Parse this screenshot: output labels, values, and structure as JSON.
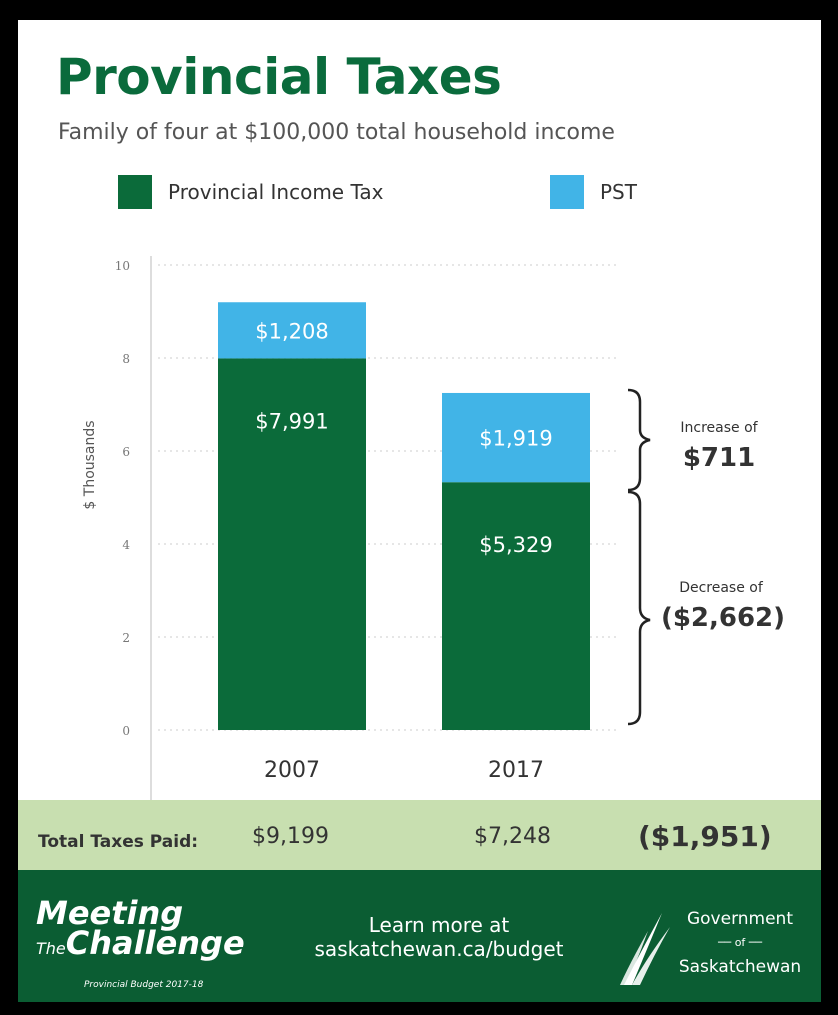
{
  "title": "Provincial Taxes",
  "subtitle": "Family of four at $100,000 total household income",
  "legend": [
    {
      "label": "Provincial Income Tax",
      "color": "#0b6b3a"
    },
    {
      "label": "PST",
      "color": "#41b4e7"
    }
  ],
  "chart_data": {
    "type": "bar",
    "stacked": true,
    "categories": [
      "2007",
      "2017"
    ],
    "series": [
      {
        "name": "Provincial Income Tax",
        "values": [
          7.991,
          5.329
        ],
        "labels": [
          "$7,991",
          "$5,329"
        ],
        "color": "#0b6b3a"
      },
      {
        "name": "PST",
        "values": [
          1.208,
          1.919
        ],
        "labels": [
          "$1,208",
          "$1,919"
        ],
        "color": "#41b4e7"
      }
    ],
    "ylabel": "$ Thousands",
    "ylim": [
      0,
      10
    ],
    "yticks": [
      "0",
      "2",
      "4",
      "6",
      "8",
      "10"
    ],
    "grid": true,
    "annotations": [
      {
        "heading": "Increase of",
        "value": "$711"
      },
      {
        "heading": "Decrease of",
        "value": "($2,662)"
      }
    ]
  },
  "totals": {
    "label": "Total Taxes Paid:",
    "values": [
      "$9,199",
      "$7,248"
    ],
    "difference": "($1,951)"
  },
  "footer": {
    "brand_line1": "Meeting",
    "brand_the": "The",
    "brand_line2": "Challenge",
    "brand_note": "Provincial Budget 2017-18",
    "learn_line1": "Learn more at",
    "learn_line2": "saskatchewan.ca/budget",
    "gov_line1": "Government",
    "gov_of": "of",
    "gov_line2": "Saskatchewan"
  }
}
